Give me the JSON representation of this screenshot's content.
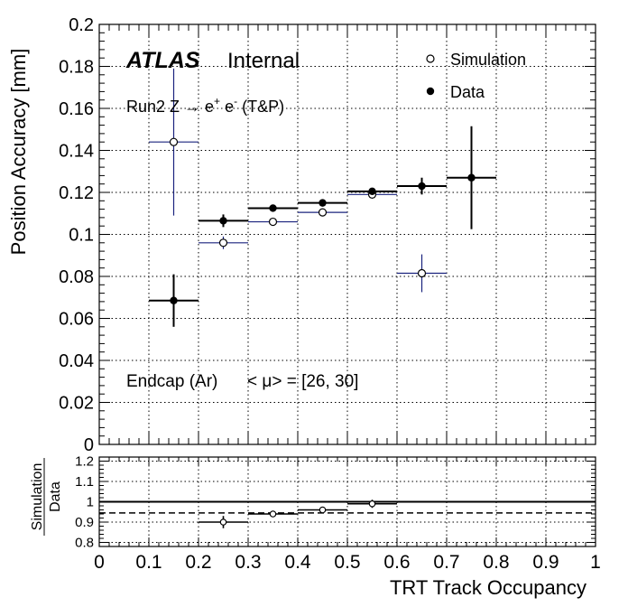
{
  "chart_data": [
    {
      "type": "scatter",
      "ylabel": "Position Accuracy [mm]",
      "xlim": [
        0,
        1
      ],
      "ylim": [
        0,
        0.2
      ],
      "grid": true,
      "y_ticks": [
        "0",
        "0.02",
        "0.04",
        "0.06",
        "0.08",
        "0.1",
        "0.12",
        "0.14",
        "0.16",
        "0.18",
        "0.2"
      ],
      "legend": {
        "placement": "top-right",
        "simulation": "Simulation",
        "data": "Data"
      },
      "labels": {
        "atlas": "ATLAS",
        "internal": "Internal",
        "process_prefix": "Run2 Z → e",
        "sup_plus": "+",
        "mid_e": " e",
        "sup_minus": "-",
        "process_suffix": " (T&P)",
        "region": "Endcap (Ar)",
        "pileup": "< μ> = [26, 30]"
      },
      "colors": {
        "simulation": "#1a237e",
        "data": "#000000"
      },
      "series": [
        {
          "name": "Simulation",
          "points": [
            {
              "x": 0.15,
              "y": 0.144,
              "xerr": 0.05,
              "yerr": 0.035
            },
            {
              "x": 0.25,
              "y": 0.096,
              "xerr": 0.05,
              "yerr": 0.003
            },
            {
              "x": 0.35,
              "y": 0.106,
              "xerr": 0.05,
              "yerr": 0.001
            },
            {
              "x": 0.45,
              "y": 0.1105,
              "xerr": 0.05,
              "yerr": 0.001
            },
            {
              "x": 0.55,
              "y": 0.119,
              "xerr": 0.05,
              "yerr": 0.002
            },
            {
              "x": 0.65,
              "y": 0.0815,
              "xerr": 0.05,
              "yerr": 0.009
            }
          ]
        },
        {
          "name": "Data",
          "points": [
            {
              "x": 0.15,
              "y": 0.0685,
              "xerr": 0.05,
              "yerr": 0.0125
            },
            {
              "x": 0.25,
              "y": 0.1065,
              "xerr": 0.05,
              "yerr": 0.003
            },
            {
              "x": 0.35,
              "y": 0.1125,
              "xerr": 0.05,
              "yerr": 0.001
            },
            {
              "x": 0.45,
              "y": 0.115,
              "xerr": 0.05,
              "yerr": 0.0015
            },
            {
              "x": 0.55,
              "y": 0.1205,
              "xerr": 0.05,
              "yerr": 0.0015
            },
            {
              "x": 0.65,
              "y": 0.123,
              "xerr": 0.05,
              "yerr": 0.004
            },
            {
              "x": 0.75,
              "y": 0.127,
              "xerr": 0.05,
              "yerr": 0.0245
            }
          ]
        }
      ]
    },
    {
      "type": "scatter",
      "ylabel_top": "Simulation",
      "ylabel_bottom": "Data",
      "xlabel": "TRT Track Occupancy",
      "xlim": [
        0,
        1
      ],
      "ylim": [
        0.78,
        1.22
      ],
      "grid": true,
      "y_ticks": [
        "0.8",
        "0.9",
        "1",
        "1.1",
        "1.2"
      ],
      "x_ticks": [
        "0",
        "0.1",
        "0.2",
        "0.3",
        "0.4",
        "0.5",
        "0.6",
        "0.7",
        "0.8",
        "0.9",
        "1"
      ],
      "reference_line": 1.0,
      "fit_line": 0.945,
      "series": [
        {
          "name": "Simulation",
          "points": [
            {
              "x": 0.25,
              "y": 0.9,
              "xerr": 0.05,
              "yerr": 0.03
            },
            {
              "x": 0.35,
              "y": 0.94,
              "xerr": 0.05,
              "yerr": 0.01
            },
            {
              "x": 0.45,
              "y": 0.96,
              "xerr": 0.05,
              "yerr": 0.012
            },
            {
              "x": 0.55,
              "y": 0.99,
              "xerr": 0.05,
              "yerr": 0.02
            }
          ]
        }
      ]
    }
  ]
}
